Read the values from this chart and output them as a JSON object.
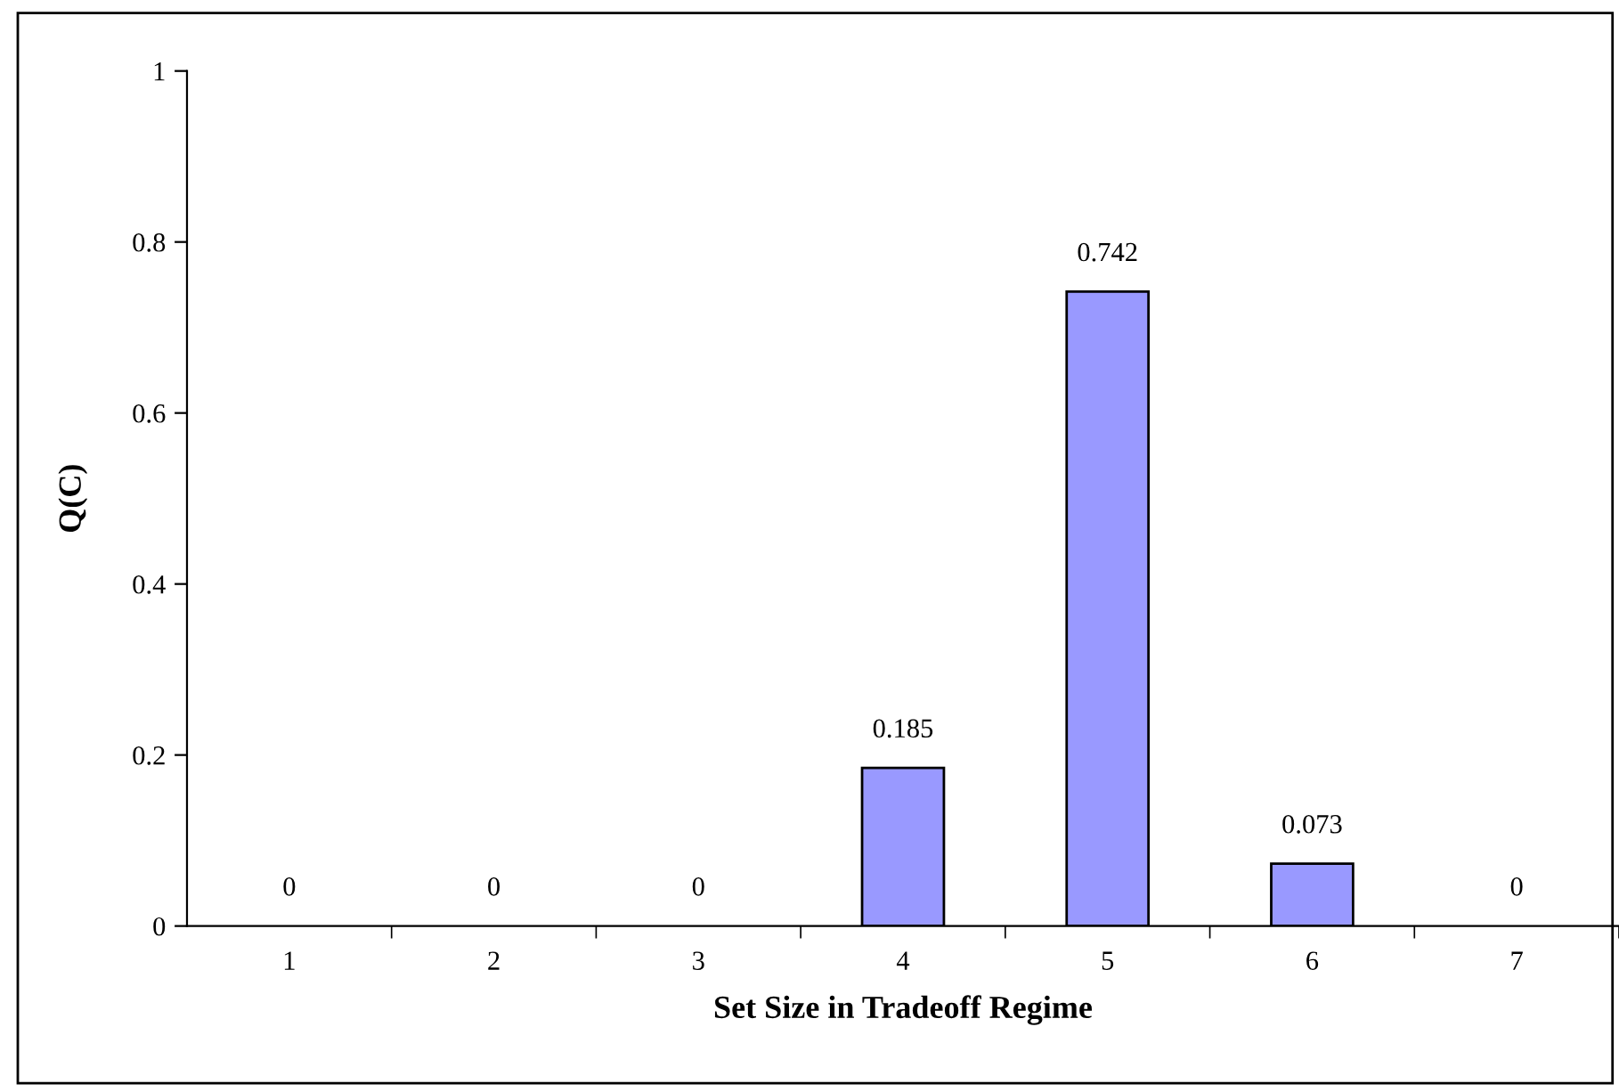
{
  "chart_data": {
    "type": "bar",
    "xlabel": "Set Size in Tradeoff Regime",
    "ylabel": "Q(C)",
    "categories": [
      "1",
      "2",
      "3",
      "4",
      "5",
      "6",
      "7"
    ],
    "values": [
      0,
      0,
      0,
      0.185,
      0.742,
      0.073,
      0
    ],
    "color": "#9999ff",
    "ylim": [
      0,
      1
    ],
    "yticks": [
      0,
      0.2,
      0.4,
      0.6,
      0.8,
      1
    ],
    "data_labels": true,
    "grid": false,
    "legend": false
  }
}
